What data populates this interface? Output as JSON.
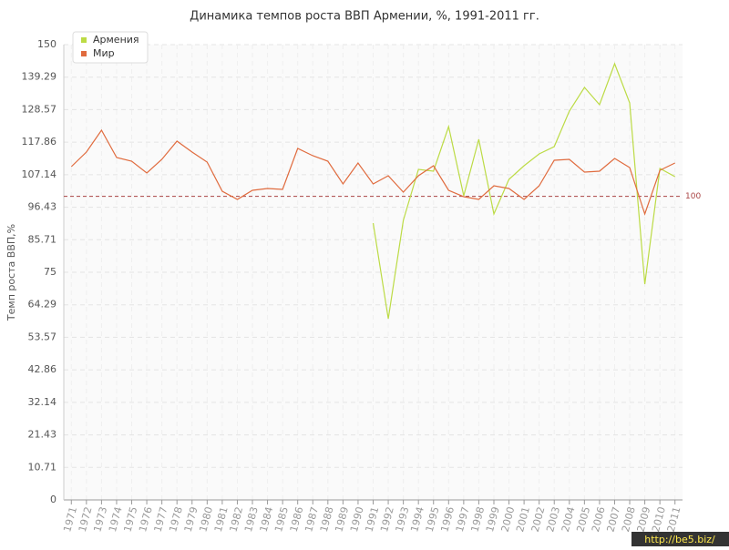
{
  "chart_data": {
    "type": "line",
    "title": "Динамика темпов роста ВВП Армении, %, 1991-2011 гг.",
    "y_label": "Темп роста ВВП,%",
    "categories": [
      "1971",
      "1972",
      "1973",
      "1974",
      "1975",
      "1976",
      "1977",
      "1978",
      "1979",
      "1980",
      "1981",
      "1982",
      "1983",
      "1984",
      "1985",
      "1986",
      "1987",
      "1988",
      "1989",
      "1990",
      "1991",
      "1992",
      "1993",
      "1994",
      "1995",
      "1996",
      "1997",
      "1998",
      "1999",
      "2000",
      "2001",
      "2002",
      "2003",
      "2004",
      "2005",
      "2006",
      "2007",
      "2008",
      "2009",
      "2010",
      "2011"
    ],
    "series": [
      {
        "name": "Армения",
        "color": "#bcdb45",
        "values": [
          null,
          null,
          null,
          null,
          null,
          null,
          null,
          null,
          null,
          null,
          null,
          null,
          null,
          null,
          null,
          null,
          null,
          null,
          null,
          null,
          91.2,
          59.7,
          92.1,
          108.9,
          108.3,
          123,
          100.2,
          118.8,
          94.2,
          105.6,
          110.1,
          114,
          116.4,
          128.1,
          135.9,
          130.2,
          143.7,
          130.8,
          71.1,
          109.2,
          106.5
        ]
      },
      {
        "name": "Мир",
        "color": "#e06b3e",
        "values": [
          109.8,
          114.6,
          121.8,
          112.8,
          111.6,
          107.7,
          112.2,
          118.2,
          114.6,
          111.3,
          101.7,
          99,
          102,
          102.6,
          102.3,
          115.8,
          113.4,
          111.6,
          104.1,
          111,
          104.1,
          106.8,
          101.4,
          106.8,
          110.1,
          102,
          99.9,
          99,
          103.5,
          102.6,
          99,
          103.5,
          111.9,
          112.2,
          108,
          108.3,
          112.5,
          109.5,
          94.2,
          108.6,
          111
        ]
      }
    ],
    "ylim": [
      0,
      150
    ],
    "yticks": [
      0,
      10.71,
      21.43,
      32.14,
      42.86,
      53.57,
      64.29,
      75,
      85.71,
      96.43,
      107.14,
      117.86,
      128.57,
      139.29,
      150
    ],
    "grid": true,
    "legend": "top-left",
    "reference_line": 100,
    "watermark": "http://be5.biz/"
  }
}
